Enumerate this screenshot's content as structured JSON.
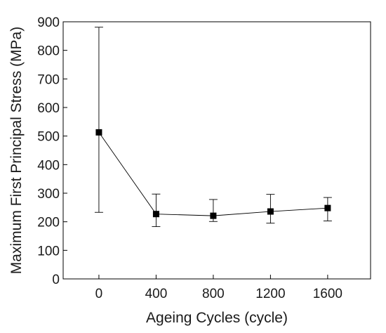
{
  "chart_data": {
    "type": "line",
    "title": "",
    "xlabel": "Ageing Cycles (cycle)",
    "ylabel": "Maximum First Principal Stress (MPa)",
    "xlim": [
      -250,
      1900
    ],
    "ylim": [
      0,
      900
    ],
    "xticks": [
      0,
      400,
      800,
      1200,
      1600
    ],
    "yticks": [
      0,
      100,
      200,
      300,
      400,
      500,
      600,
      700,
      800,
      900
    ],
    "grid": false,
    "legend": "none",
    "marker": "square",
    "color": "#000000",
    "series": [
      {
        "x": [
          0,
          400,
          800,
          1200,
          1600
        ],
        "y": [
          513,
          227,
          221,
          236,
          248
        ],
        "err_low": [
          233,
          183,
          201,
          195,
          203
        ],
        "err_high": [
          881,
          297,
          278,
          296,
          285
        ]
      }
    ]
  }
}
